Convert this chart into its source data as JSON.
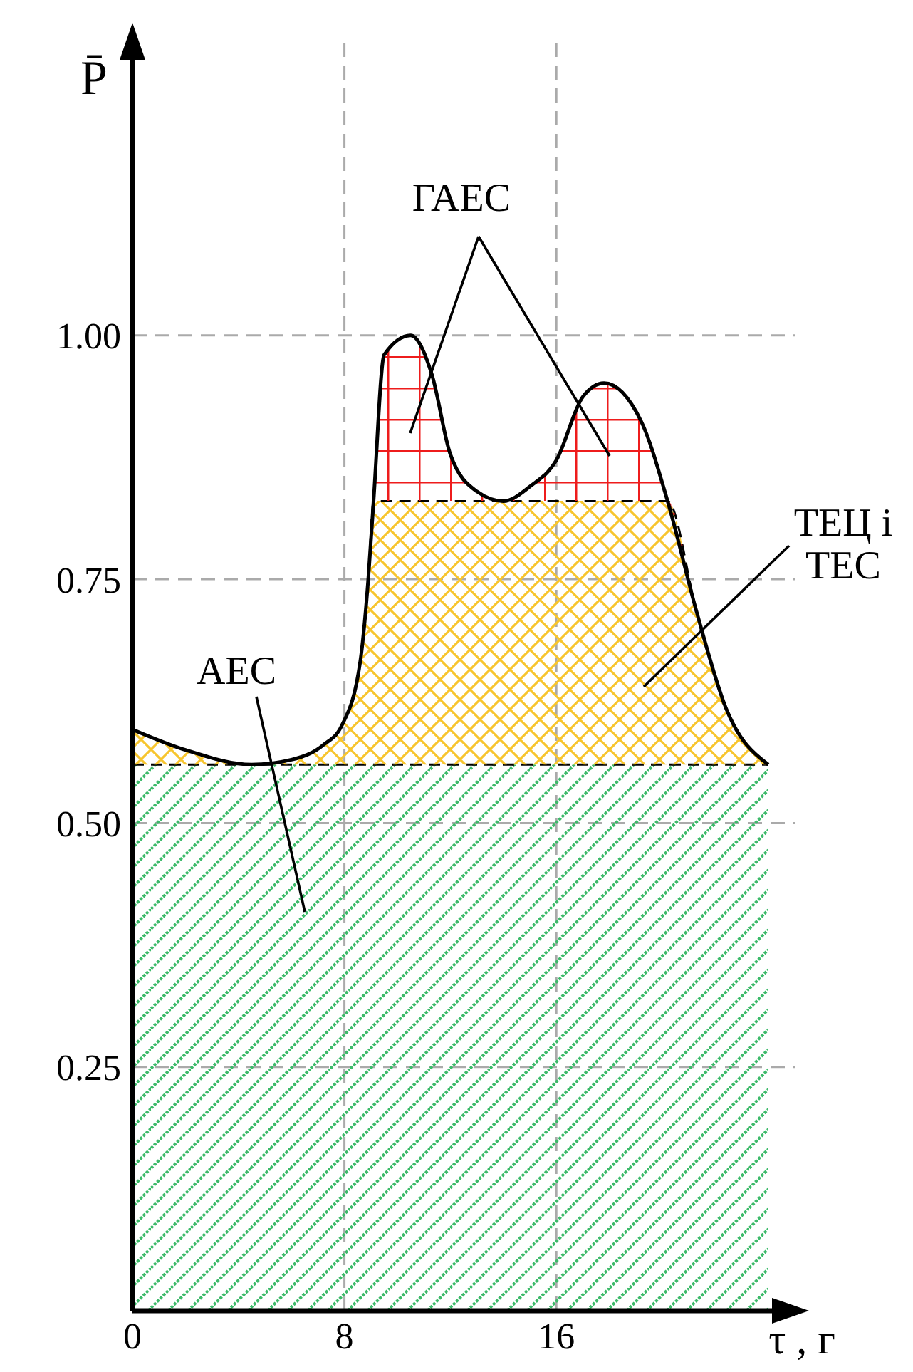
{
  "chart_data": {
    "type": "area",
    "xlabel": "τ , г",
    "ylabel": "P̄",
    "x": [
      0,
      2,
      4.5,
      6,
      7.2,
      7.9,
      8.6,
      8.9,
      9.1,
      9.5,
      10.5,
      11.3,
      12,
      13,
      14,
      15,
      16,
      17,
      17.8,
      19.2,
      20.2,
      21.3,
      22.4,
      24
    ],
    "stacked": true,
    "series": [
      {
        "color": "#3dba6a",
        "line_style": "dashed",
        "values": [
          0.56,
          0.56,
          0.56,
          0.56,
          0.56,
          0.56,
          0.56,
          0.56,
          0.56,
          0.56,
          0.56,
          0.56,
          0.56,
          0.56,
          0.56,
          0.56,
          0.56,
          0.56,
          0.56,
          0.56,
          0.56,
          0.56,
          0.56,
          0.56
        ]
      },
      {
        "color": "#f7c52e",
        "line_style": "dashed",
        "values": [
          0.036,
          0.015,
          0,
          0.005,
          0.02,
          0.04,
          0.106,
          0.19,
          0.27,
          0.27,
          0.27,
          0.27,
          0.27,
          0.27,
          0.27,
          0.27,
          0.27,
          0.27,
          0.27,
          0.27,
          0.27,
          0.156,
          0.058,
          0
        ]
      },
      {
        "color": "#ee1c1c",
        "line_style": "solid",
        "values": [
          0,
          0,
          0,
          0,
          0,
          0,
          0,
          0,
          0,
          0.15,
          0.17,
          0.13,
          0.048,
          0.01,
          0,
          0.015,
          0.042,
          0.107,
          0.121,
          0.082,
          0,
          0,
          0,
          0
        ]
      }
    ],
    "xlim": [
      0,
      25
    ],
    "xticks": [
      0,
      8,
      16
    ],
    "ylim": [
      0,
      1.3
    ],
    "yticks": [
      {
        "value": 0.25,
        "label": "0.25"
      },
      {
        "value": 0.5,
        "label": "0.50"
      },
      {
        "value": 0.75,
        "label": "0.75"
      },
      {
        "value": 1,
        "label": "1.00"
      }
    ],
    "grid": true,
    "legend": false,
    "annotations": [
      "ГАЕС",
      "ТЕЦ і ТЕС",
      "АЕС"
    ]
  }
}
